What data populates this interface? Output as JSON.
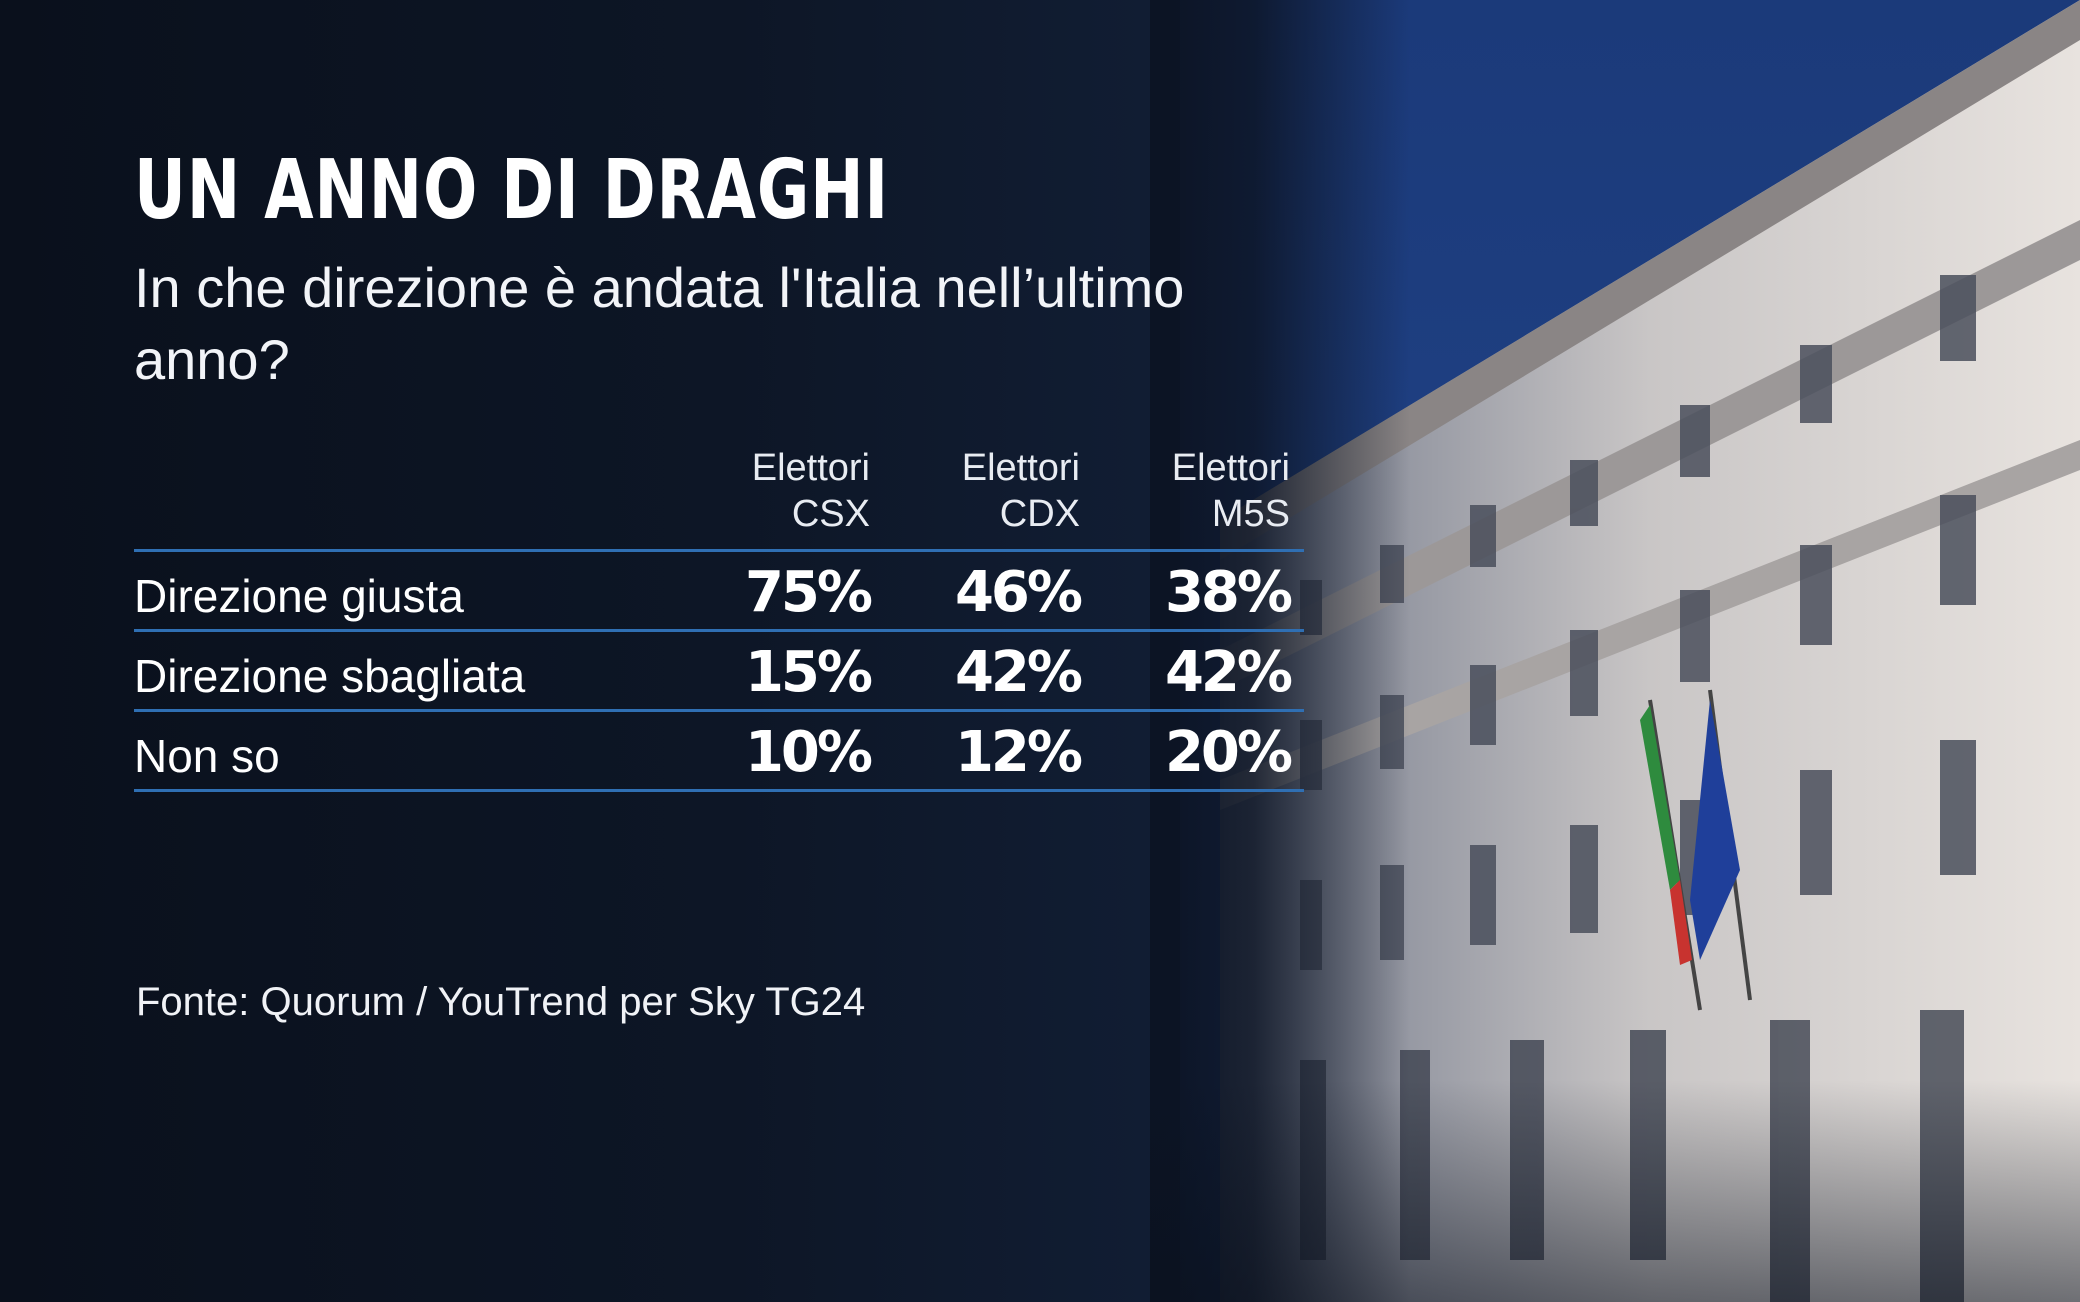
{
  "title": "UN ANNO DI DRAGHI",
  "subtitle": "In che direzione è andata l'Italia nell’ultimo anno?",
  "source": "Fonte: Quorum / YouTrend per Sky TG24",
  "colors": {
    "divider": "#2f6fb3",
    "background": "#0b1220",
    "text": "#ffffff"
  },
  "chart_data": {
    "type": "table",
    "title": "UN ANNO DI DRAGHI",
    "subtitle": "In che direzione è andata l'Italia nell’ultimo anno?",
    "columns": [
      {
        "line1": "Elettori",
        "line2": "CSX"
      },
      {
        "line1": "Elettori",
        "line2": "CDX"
      },
      {
        "line1": "Elettori",
        "line2": "M5S"
      }
    ],
    "rows": [
      {
        "label": "Direzione giusta",
        "values": [
          "75%",
          "46%",
          "38%"
        ]
      },
      {
        "label": "Direzione sbagliata",
        "values": [
          "15%",
          "42%",
          "42%"
        ]
      },
      {
        "label": "Non so",
        "values": [
          "10%",
          "12%",
          "20%"
        ]
      }
    ],
    "source": "Fonte: Quorum / YouTrend per Sky TG24"
  }
}
